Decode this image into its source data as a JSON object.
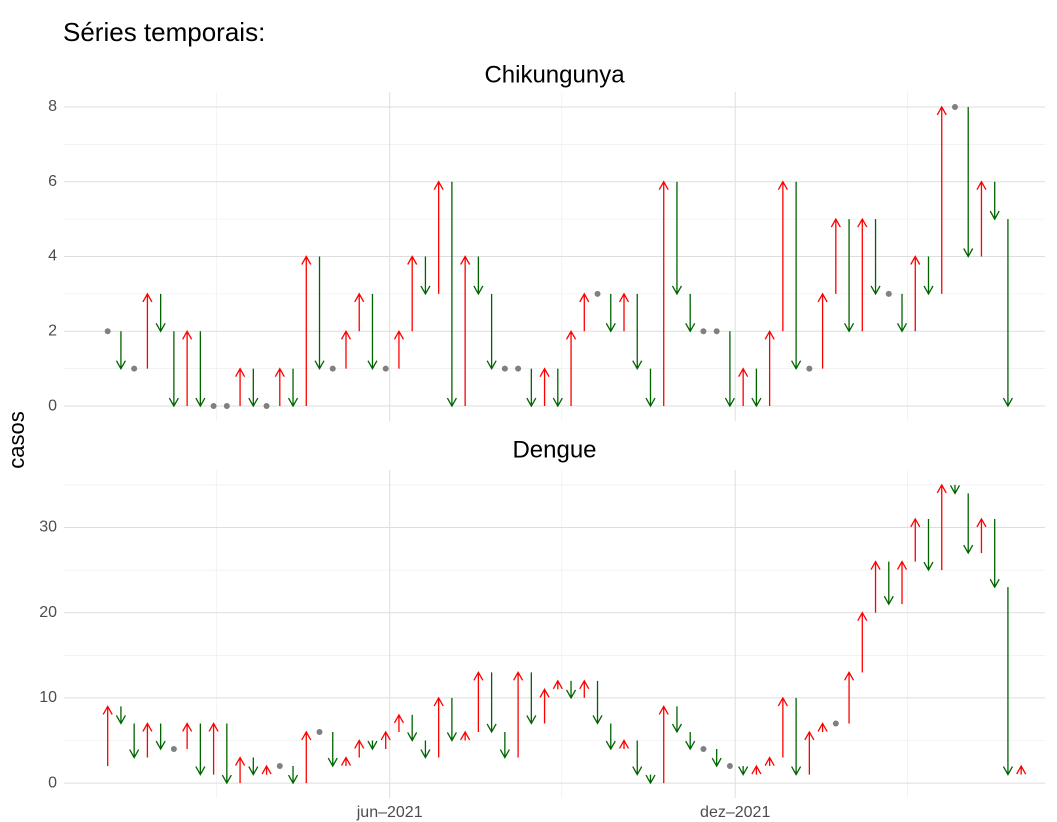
{
  "title": "Séries temporais:",
  "ylabel": "casos",
  "chart_data": [
    {
      "type": "arrow",
      "title": "Chikungunya",
      "values": [
        2,
        2,
        1,
        1,
        3,
        2,
        0,
        2,
        0,
        0,
        0,
        1,
        0,
        0,
        1,
        0,
        4,
        1,
        1,
        2,
        3,
        1,
        1,
        2,
        4,
        3,
        6,
        0,
        4,
        3,
        1,
        1,
        1,
        0,
        1,
        0,
        2,
        3,
        3,
        2,
        3,
        1,
        0,
        6,
        3,
        2,
        2,
        2,
        0,
        1,
        0,
        2,
        6,
        1,
        1,
        3,
        5,
        2,
        5,
        3,
        3,
        2,
        4,
        3,
        8,
        8,
        4,
        6,
        5,
        0
      ],
      "xlim": [
        -3.3,
        70.8
      ],
      "ylim": [
        -0.4,
        8.4
      ],
      "yticks": [
        0,
        2,
        4,
        6,
        8
      ],
      "yminor": [
        1,
        3,
        5,
        7
      ],
      "colors": {
        "up": "#ff0000",
        "down": "#006400",
        "flat": "#808080"
      },
      "grid": true
    },
    {
      "type": "arrow",
      "title": "Dengue",
      "values": [
        2,
        9,
        7,
        3,
        7,
        4,
        4,
        7,
        1,
        7,
        0,
        3,
        1,
        2,
        2,
        0,
        6,
        6,
        2,
        3,
        5,
        4,
        6,
        8,
        5,
        3,
        10,
        5,
        6,
        13,
        6,
        3,
        13,
        7,
        11,
        12,
        10,
        12,
        7,
        4,
        5,
        1,
        0,
        9,
        6,
        4,
        4,
        2,
        2,
        1,
        2,
        3,
        10,
        1,
        6,
        7,
        7,
        13,
        20,
        26,
        21,
        26,
        31,
        25,
        35,
        34,
        27,
        31,
        23,
        1,
        2
      ],
      "xlim": [
        -3.3,
        70.8
      ],
      "ylim": [
        -1.75,
        36.75
      ],
      "yticks": [
        0,
        10,
        20,
        30
      ],
      "yminor": [
        5,
        15,
        25,
        35
      ],
      "xticks": [
        {
          "value": 21.3,
          "label": "jun–2021"
        },
        {
          "value": 47.4,
          "label": "dez–2021"
        }
      ],
      "xminor": [
        8.2,
        34.3,
        60.4
      ],
      "colors": {
        "up": "#ff0000",
        "down": "#006400",
        "flat": "#808080"
      },
      "grid": true
    }
  ]
}
